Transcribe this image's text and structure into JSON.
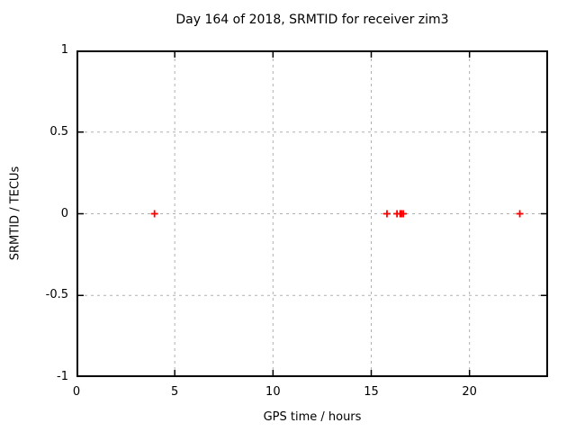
{
  "chart_data": {
    "type": "scatter",
    "title": "Day 164 of 2018, SRMTID for receiver zim3",
    "xlabel": "GPS time / hours",
    "ylabel": "SRMTID / TECUs",
    "xlim": [
      0,
      24
    ],
    "ylim": [
      -1,
      1
    ],
    "xticks": [
      0,
      5,
      10,
      15,
      20
    ],
    "yticks": [
      1,
      0.5,
      0,
      -0.5,
      -1
    ],
    "grid": true,
    "legend": "none",
    "marker_shape": "plus",
    "series": [
      {
        "name": "SRMTID",
        "color": "#ff0000",
        "points": [
          {
            "x": 3.97,
            "y": 0
          },
          {
            "x": 15.8,
            "y": 0
          },
          {
            "x": 16.31,
            "y": 0
          },
          {
            "x": 16.47,
            "y": 0
          },
          {
            "x": 16.54,
            "y": 0
          },
          {
            "x": 16.63,
            "y": 0
          },
          {
            "x": 22.56,
            "y": 0
          }
        ]
      }
    ],
    "colors": {
      "background": "#ffffff",
      "border": "#000000",
      "grid": "#b0b0b0",
      "text": "#000000",
      "marker": "#ff0000"
    }
  }
}
